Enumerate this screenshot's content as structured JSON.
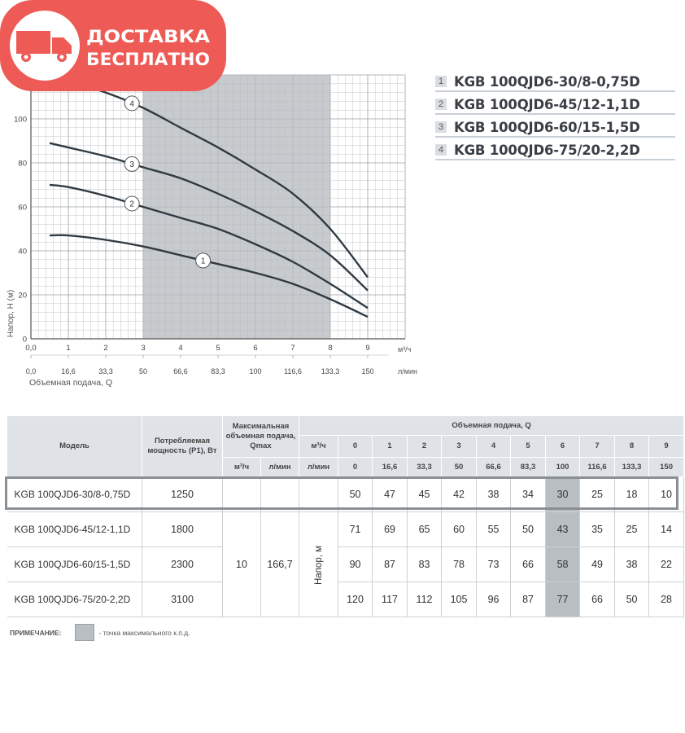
{
  "badge": {
    "line1": "ДОСТАВКА",
    "line2": "БЕСПЛАТНО",
    "color": "#ee5a55"
  },
  "chart_data": {
    "type": "line",
    "ylabel": "Напор, H (м)",
    "xlabel": "Объемная подача, Q",
    "x_unit_top": "м³/ч",
    "x_unit_bottom": "л/мин",
    "xlim": [
      0,
      10
    ],
    "ylim": [
      0,
      120
    ],
    "x_ticks": [
      "0,0",
      "1",
      "2",
      "3",
      "4",
      "5",
      "6",
      "7",
      "8",
      "9"
    ],
    "x_ticks_lmin": [
      "0,0",
      "16,6",
      "33,3",
      "50",
      "66,6",
      "83,3",
      "100",
      "116,6",
      "133,3",
      "150"
    ],
    "y_ticks": [
      "0",
      "20",
      "40",
      "60",
      "80",
      "100"
    ],
    "y_tick_values": [
      0,
      20,
      40,
      60,
      80,
      100
    ],
    "grid": true,
    "shaded_range": [
      3,
      8
    ],
    "x": [
      0.5,
      1,
      2,
      3,
      4,
      5,
      6,
      7,
      8,
      9
    ],
    "series": [
      {
        "name": "1",
        "values": [
          47,
          47,
          45,
          42,
          38,
          34,
          30,
          25,
          18,
          10
        ]
      },
      {
        "name": "2",
        "values": [
          70,
          69,
          65,
          60,
          55,
          50,
          43,
          35,
          25,
          14
        ]
      },
      {
        "name": "3",
        "values": [
          89,
          87,
          83,
          78,
          73,
          66,
          58,
          49,
          38,
          22
        ]
      },
      {
        "name": "4",
        "values": [
          120,
          117,
          112,
          105,
          96,
          87,
          77,
          66,
          50,
          28
        ]
      }
    ],
    "marker_x": [
      4.6,
      2.7,
      2.7,
      2.7
    ]
  },
  "legend": [
    {
      "num": "1",
      "label": "KGB 100QJD6-30/8-0,75D"
    },
    {
      "num": "2",
      "label": "KGB 100QJD6-45/12-1,1D"
    },
    {
      "num": "3",
      "label": "KGB 100QJD6-60/15-1,5D"
    },
    {
      "num": "4",
      "label": "KGB 100QJD6-75/20-2,2D"
    }
  ],
  "table": {
    "h_model": "Модель",
    "h_power": "Потребляемая мощность (P1), Вт",
    "h_qmax": "Максимальная объемная подача, Qmax",
    "h_flow": "Объемная подача, Q",
    "u_m3h": "м³/ч",
    "u_lmin": "л/мин",
    "flow_m3h": [
      "0",
      "1",
      "2",
      "3",
      "4",
      "5",
      "6",
      "7",
      "8",
      "9"
    ],
    "flow_lmin": [
      "0",
      "16,6",
      "33,3",
      "50",
      "66,6",
      "83,3",
      "100",
      "116,6",
      "133,3",
      "150"
    ],
    "qmax_m3h": "10",
    "qmax_lmin": "166,7",
    "head_label": "Напор, м",
    "rows": [
      {
        "model": "KGB 100QJD6-30/8-0,75D",
        "power": "1250",
        "values": [
          "50",
          "47",
          "45",
          "42",
          "38",
          "34",
          "30",
          "25",
          "18",
          "10"
        ]
      },
      {
        "model": "KGB 100QJD6-45/12-1,1D",
        "power": "1800",
        "values": [
          "71",
          "69",
          "65",
          "60",
          "55",
          "50",
          "43",
          "35",
          "25",
          "14"
        ]
      },
      {
        "model": "KGB 100QJD6-60/15-1,5D",
        "power": "2300",
        "values": [
          "90",
          "87",
          "83",
          "78",
          "73",
          "66",
          "58",
          "49",
          "38",
          "22"
        ]
      },
      {
        "model": "KGB 100QJD6-75/20-2,2D",
        "power": "3100",
        "values": [
          "120",
          "117",
          "112",
          "105",
          "96",
          "87",
          "77",
          "66",
          "50",
          "28"
        ]
      }
    ]
  },
  "note": {
    "title": "ПРИМЕЧАНИЕ:",
    "text": "- точка максимального к.п.д."
  }
}
